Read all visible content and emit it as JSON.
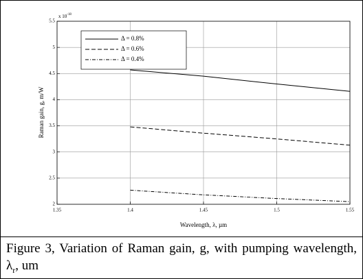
{
  "chart_data": {
    "type": "line",
    "x_label": "Wavelength, λ, µm",
    "y_label": "Raman gain, g, m/W",
    "y_multiplier": "x 10",
    "y_exponent": "-18",
    "xlim": [
      1.35,
      1.55
    ],
    "xticks": [
      1.35,
      1.4,
      1.45,
      1.5,
      1.55
    ],
    "ylim": [
      2,
      5.5
    ],
    "yticks": [
      2,
      2.5,
      3,
      3.5,
      4,
      4.5,
      5,
      5.5
    ],
    "grid": true,
    "legend": "upper left",
    "x": [
      1.4,
      1.45,
      1.5,
      1.55
    ],
    "series": [
      {
        "name": "Δ = 0.8%",
        "color": "#000000",
        "linestyle": "solid",
        "values": [
          4.57,
          4.45,
          4.3,
          4.16
        ]
      },
      {
        "name": "Δ = 0.6%",
        "color": "#000000",
        "linestyle": "dashed",
        "values": [
          3.48,
          3.36,
          3.25,
          3.13
        ]
      },
      {
        "name": "Δ = 0.4%",
        "color": "#000000",
        "linestyle": "dashdot",
        "values": [
          2.27,
          2.18,
          2.11,
          2.05
        ]
      }
    ]
  },
  "caption": {
    "text": "Figure 3, Variation of Raman gain, g, with pumping wavelength, λ",
    "subscript": "r",
    "tail": ", um"
  }
}
